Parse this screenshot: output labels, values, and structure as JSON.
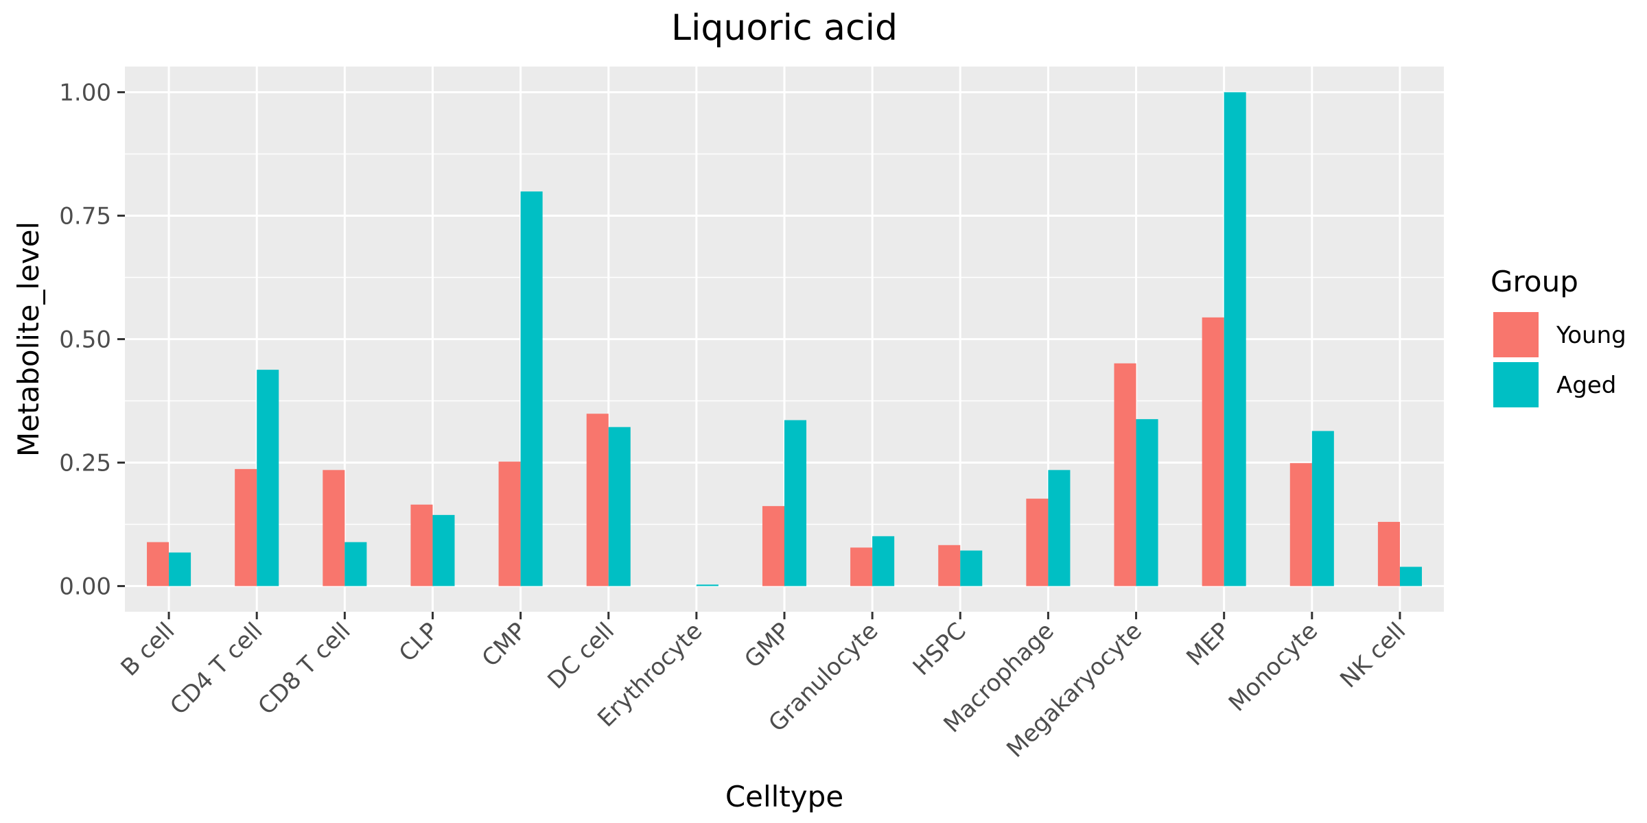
{
  "chart_data": {
    "type": "bar",
    "title": "Liquoric acid",
    "xlabel": "Celltype",
    "ylabel": "Metabolite_level",
    "ylim": [
      -0.052,
      1.052
    ],
    "yticks": [
      0.0,
      0.25,
      0.5,
      0.75,
      1.0
    ],
    "ytick_labels": [
      "0.00",
      "0.25",
      "0.50",
      "0.75",
      "1.00"
    ],
    "categories": [
      "B cell",
      "CD4 T cell",
      "CD8 T cell",
      "CLP",
      "CMP",
      "DC cell",
      "Erythrocyte",
      "GMP",
      "Granulocyte",
      "HSPC",
      "Macrophage",
      "Megakaryocyte",
      "MEP",
      "Monocyte",
      "NK cell"
    ],
    "series": [
      {
        "name": "Young",
        "color": "#F8766D",
        "values": [
          0.089,
          0.237,
          0.235,
          0.165,
          0.252,
          0.349,
          0.0,
          0.162,
          0.078,
          0.083,
          0.177,
          0.451,
          0.544,
          0.249,
          0.13
        ]
      },
      {
        "name": "Aged",
        "color": "#00BFC4",
        "values": [
          0.068,
          0.438,
          0.089,
          0.144,
          0.799,
          0.322,
          0.003,
          0.336,
          0.101,
          0.072,
          0.235,
          0.338,
          1.0,
          0.314,
          0.039
        ]
      }
    ],
    "legend": {
      "title": "Group",
      "position": "right"
    },
    "grid": true,
    "panel_background": "#EBEBEB",
    "grid_color": "#FFFFFF"
  }
}
